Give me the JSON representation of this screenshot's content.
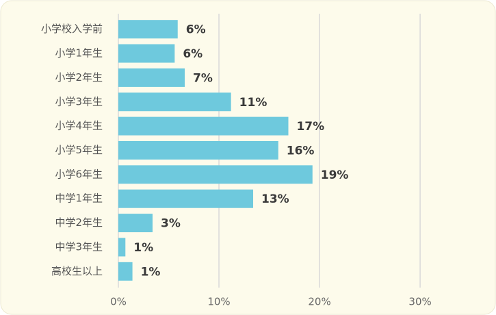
{
  "chart_data": {
    "type": "bar",
    "orientation": "horizontal",
    "categories": [
      "小学校入学前",
      "小学1年生",
      "小学2年生",
      "小学3年生",
      "小学4年生",
      "小学5年生",
      "小学6年生",
      "中学1年生",
      "中学2年生",
      "中学3年生",
      "高校生以上"
    ],
    "values": [
      5.9,
      5.6,
      6.6,
      11.2,
      16.9,
      15.9,
      19.3,
      13.4,
      3.4,
      0.7,
      1.4
    ],
    "value_labels": [
      "6%",
      "6%",
      "7%",
      "11%",
      "17%",
      "16%",
      "19%",
      "13%",
      "3%",
      "1%",
      "1%"
    ],
    "color": "#6ec9dd",
    "xlim": [
      0,
      37
    ],
    "xticks": [
      {
        "value": 0,
        "label": "0%"
      },
      {
        "value": 10,
        "label": "10%"
      },
      {
        "value": 20,
        "label": "20%"
      },
      {
        "value": 30,
        "label": "30%"
      }
    ],
    "grid": true
  }
}
